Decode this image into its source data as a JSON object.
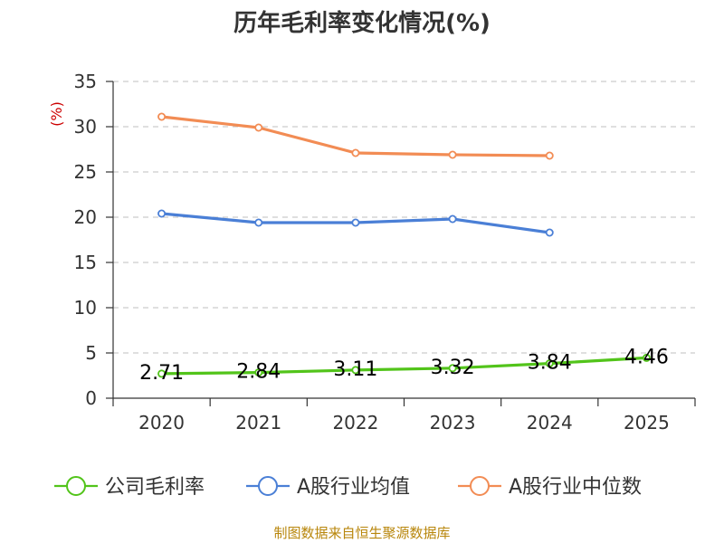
{
  "chart_data": {
    "type": "line",
    "title": "历年毛利率变化情况(%)",
    "ylabel": "(%)",
    "xlabel": "",
    "categories": [
      "2020",
      "2021",
      "2022",
      "2023",
      "2024",
      "2025"
    ],
    "ylim": [
      0,
      35
    ],
    "yticks": [
      0,
      5,
      10,
      15,
      20,
      25,
      30,
      35
    ],
    "grid": true,
    "legend_position": "bottom",
    "series": [
      {
        "name": "公司毛利率",
        "color": "#52c41a",
        "values": [
          2.71,
          2.84,
          3.11,
          3.32,
          3.84,
          4.46
        ],
        "labels": [
          "2.71",
          "2.84",
          "3.11",
          "3.32",
          "3.84",
          "4.46"
        ]
      },
      {
        "name": "A股行业均值",
        "color": "#4a7fd6",
        "values": [
          20.4,
          19.4,
          19.4,
          19.8,
          18.3,
          null
        ]
      },
      {
        "name": "A股行业中位数",
        "color": "#f28c54",
        "values": [
          31.1,
          29.9,
          27.1,
          26.9,
          26.8,
          null
        ]
      }
    ]
  },
  "source_text": "制图数据来自恒生聚源数据库"
}
